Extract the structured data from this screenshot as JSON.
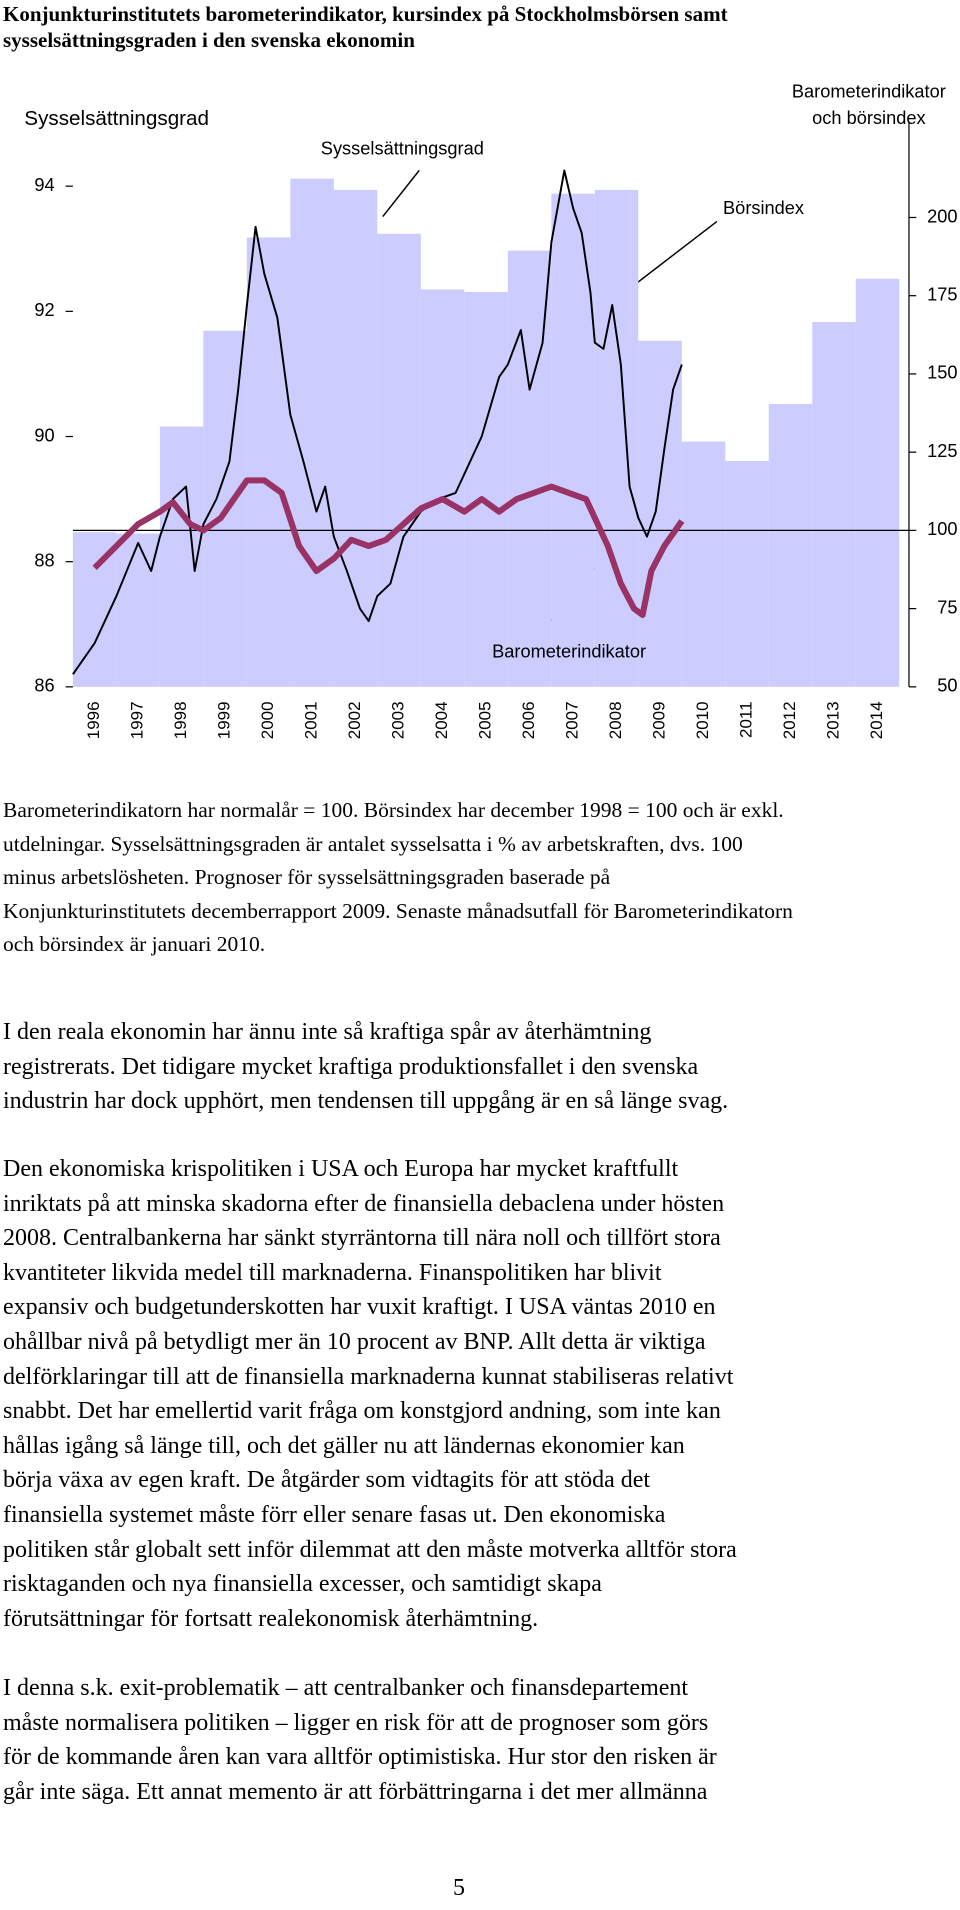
{
  "title": [
    "Konjunkturinstitutets barometerindikator, kursindex på Stockholmsbörsen samt",
    "sysselsättningsgraden i den svenska ekonomin"
  ],
  "chart_data": {
    "type": "combo",
    "ylabel": "Sysselsättningsgrad",
    "y2label": [
      "Barometerindikator",
      "och börsindex"
    ],
    "categories": [
      "1996",
      "1997",
      "1998",
      "1999",
      "2000",
      "2001",
      "2002",
      "2003",
      "2004",
      "2005",
      "2006",
      "2007",
      "2008",
      "2009",
      "2010",
      "2011",
      "2012",
      "2013",
      "2014"
    ],
    "series": [
      {
        "name": "Sysselsättningsgrad",
        "type": "bar",
        "color": "#ccccff",
        "values": [
          88.47,
          88.45,
          90.16,
          91.69,
          93.18,
          94.12,
          93.94,
          93.24,
          92.35,
          92.31,
          92.97,
          93.88,
          93.94,
          91.53,
          89.92,
          89.61,
          90.52,
          91.83,
          92.52
        ]
      },
      {
        "name": "Börsindex",
        "type": "line",
        "axis": "y2",
        "color": "#000000",
        "x": [
          1996.0,
          1996.5,
          1997.0,
          1997.5,
          1997.8,
          1998.0,
          1998.3,
          1998.6,
          1998.8,
          1999.0,
          1999.3,
          1999.6,
          1999.8,
          2000.0,
          2000.2,
          2000.4,
          2000.7,
          2001.0,
          2001.3,
          2001.6,
          2001.8,
          2002.0,
          2002.3,
          2002.6,
          2002.8,
          2003.0,
          2003.3,
          2003.6,
          2004.0,
          2004.4,
          2004.8,
          2005.0,
          2005.4,
          2005.8,
          2006.0,
          2006.3,
          2006.5,
          2006.8,
          2007.0,
          2007.3,
          2007.5,
          2007.7,
          2007.9,
          2008.0,
          2008.2,
          2008.4,
          2008.6,
          2008.8,
          2009.0,
          2009.2,
          2009.4,
          2009.6,
          2009.8,
          2010.0
        ],
        "values": [
          54,
          64,
          79,
          96,
          87,
          98,
          110,
          114,
          87,
          102,
          110,
          122,
          145,
          172,
          197,
          182,
          168,
          137,
          122,
          106,
          114,
          98,
          87,
          75,
          71,
          79,
          83,
          98,
          106,
          110,
          112,
          118,
          130,
          149,
          153,
          164,
          145,
          160,
          192,
          215,
          203,
          195,
          176,
          160,
          158,
          172,
          153,
          114,
          104,
          98,
          106,
          126,
          145,
          153
        ]
      },
      {
        "name": "Barometerindikator",
        "type": "line",
        "axis": "y2",
        "color": "#993366",
        "x": [
          1996.5,
          1997.0,
          1997.5,
          1998.0,
          1998.3,
          1998.7,
          1999.0,
          1999.4,
          1999.7,
          2000.0,
          2000.4,
          2000.8,
          2001.2,
          2001.6,
          2002.0,
          2002.4,
          2002.8,
          2003.2,
          2003.6,
          2004.0,
          2004.5,
          2005.0,
          2005.4,
          2005.8,
          2006.2,
          2006.6,
          2007.0,
          2007.4,
          2007.8,
          2008.0,
          2008.3,
          2008.6,
          2008.9,
          2009.1,
          2009.3,
          2009.6,
          2010.0
        ],
        "values": [
          88,
          95,
          102,
          106,
          109,
          102,
          100,
          104,
          110,
          116,
          116,
          112,
          95,
          87,
          91,
          97,
          95,
          97,
          102,
          107,
          110,
          106,
          110,
          106,
          110,
          112,
          114,
          112,
          110,
          104,
          95,
          83,
          75,
          73,
          87,
          95,
          103
        ]
      }
    ],
    "xlim": [
      1996,
      2015
    ],
    "ylim": [
      86,
      95
    ],
    "yticks": [
      86,
      88,
      90,
      92,
      94
    ],
    "y2lim": [
      50,
      230
    ],
    "y2ticks": [
      50,
      75,
      100,
      125,
      150,
      175,
      200
    ],
    "hline": 100
  },
  "caption": [
    "Barometerindikatorn har normalår = 100. Börsindex har december 1998 = 100 och är exkl.",
    "utdelningar. Sysselsättningsgraden är antalet sysselsatta i % av arbetskraften, dvs. 100",
    "minus arbetslösheten. Prognoser för sysselsättningsgraden baserade på",
    "Konjunkturinstitutets decemberrapport 2009. Senaste månadsutfall för Barometerindikatorn",
    "och börsindex är januari 2010."
  ],
  "paragraphs": [
    [
      "I den reala ekonomin har ännu inte så kraftiga spår av återhämtning",
      "registrerats. Det tidigare mycket kraftiga produktionsfallet i den svenska",
      "industrin har dock upphört, men tendensen till uppgång är en så länge svag."
    ],
    [
      "Den ekonomiska krispolitiken i USA och Europa har mycket kraftfullt",
      "inriktats på att minska skadorna efter de finansiella debaclena under hösten",
      "2008. Centralbankerna har sänkt styrräntorna till nära noll och tillfört stora",
      "kvantiteter likvida medel till marknaderna. Finanspolitiken har blivit",
      "expansiv och budgetunderskotten har vuxit kraftigt. I USA väntas 2010 en",
      "ohållbar nivå på betydligt mer än 10 procent av BNP. Allt detta är viktiga",
      "delförklaringar till att de finansiella marknaderna kunnat stabiliseras relativt",
      "snabbt. Det har emellertid varit fråga om konstgjord andning, som inte kan",
      "hållas igång så länge till, och det gäller nu att ländernas ekonomier kan",
      "börja växa av egen kraft. De åtgärder som vidtagits för att stöda det",
      "finansiella systemet måste förr eller senare fasas ut. Den ekonomiska",
      "politiken står globalt sett inför dilemmat att den måste motverka alltför stora",
      "risktaganden och nya finansiella excesser, och samtidigt skapa",
      "förutsättningar för fortsatt realekonomisk återhämtning."
    ],
    [
      "I denna s.k. exit-problematik – att centralbanker och finansdepartement",
      "måste normalisera politiken – ligger en risk för att de prognoser som görs",
      "för de kommande åren kan vara alltför optimistiska. Hur stor den risken är",
      "går inte säga. Ett annat memento är att förbättringarna i det mer allmänna"
    ]
  ],
  "page_number": "5"
}
